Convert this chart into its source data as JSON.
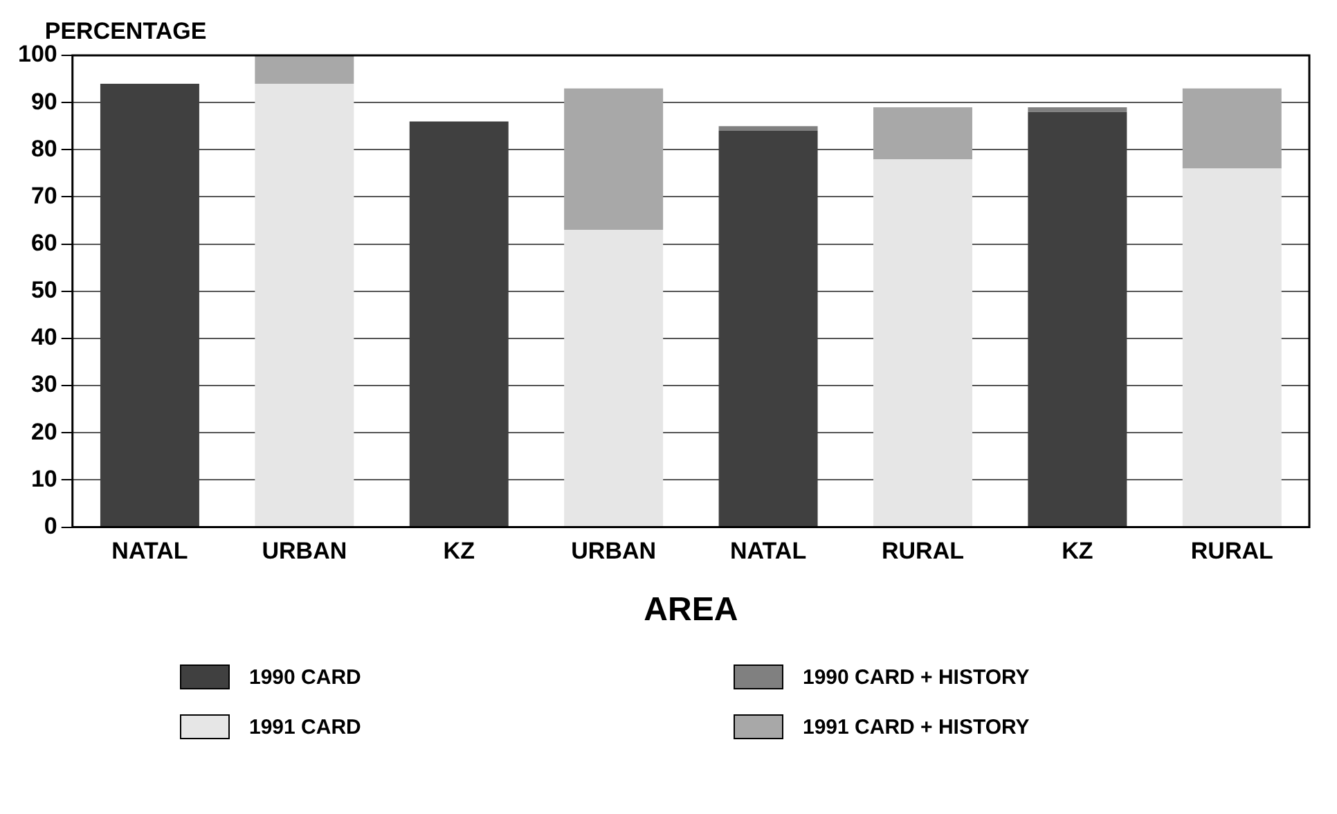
{
  "chart_data": {
    "type": "bar",
    "stacked": true,
    "xlabel": "AREA",
    "ylabel": "PERCENTAGE",
    "categories": [
      "NATAL",
      "URBAN",
      "KZ",
      "URBAN",
      "NATAL",
      "RURAL",
      "KZ",
      "RURAL"
    ],
    "series": [
      {
        "name": "1990 CARD",
        "color": "#404040",
        "values": [
          94,
          null,
          86,
          null,
          84,
          null,
          88,
          null
        ]
      },
      {
        "name": "1990 CARD + HISTORY",
        "color": "#808080",
        "values": [
          0,
          null,
          0,
          null,
          1,
          null,
          1,
          null
        ]
      },
      {
        "name": "1991 CARD",
        "color": "#e6e6e6",
        "values": [
          null,
          94,
          null,
          63,
          null,
          78,
          null,
          76
        ]
      },
      {
        "name": "1991 CARD + HISTORY",
        "color": "#a8a8a8",
        "values": [
          null,
          6,
          null,
          30,
          null,
          11,
          null,
          17
        ]
      }
    ],
    "ylim": [
      0,
      100
    ],
    "yticks": [
      0,
      10,
      20,
      30,
      40,
      50,
      60,
      70,
      80,
      90,
      100
    ],
    "grid": "y",
    "legend": "bottom"
  }
}
